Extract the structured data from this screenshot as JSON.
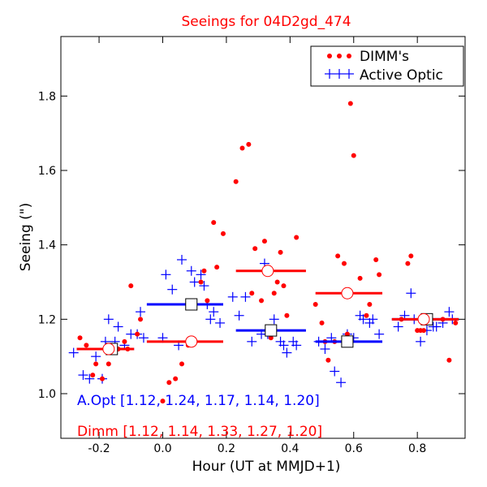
{
  "chart_data": {
    "type": "scatter",
    "title": "Seeings for 04D2gd_474",
    "xlabel": "Hour (UT at MMJD+1)",
    "ylabel": "Seeing (\")",
    "xlim": [
      -0.32,
      0.95
    ],
    "ylim": [
      0.88,
      1.96
    ],
    "xticks": [
      -0.2,
      0.0,
      0.2,
      0.4,
      0.6,
      0.8
    ],
    "xtick_labels": [
      "-0.2",
      "0.0",
      "0.2",
      "0.4",
      "0.6",
      "0.8"
    ],
    "yticks": [
      1.0,
      1.2,
      1.4,
      1.6,
      1.8
    ],
    "ytick_labels": [
      "1.0",
      "1.2",
      "1.4",
      "1.6",
      "1.8"
    ],
    "grid": false,
    "legend_position": "top-right",
    "colors": {
      "dimm": "#ff0000",
      "active_optic": "#0000ff",
      "title": "#ff0000"
    },
    "series": [
      {
        "name": "DIMM's",
        "marker": "dot",
        "points": [
          [
            -0.26,
            1.15
          ],
          [
            -0.24,
            1.13
          ],
          [
            -0.22,
            1.05
          ],
          [
            -0.21,
            1.08
          ],
          [
            -0.19,
            1.04
          ],
          [
            -0.17,
            1.08
          ],
          [
            -0.16,
            1.12
          ],
          [
            -0.14,
            1.12
          ],
          [
            -0.12,
            1.14
          ],
          [
            -0.11,
            1.12
          ],
          [
            -0.1,
            1.29
          ],
          [
            -0.08,
            1.16
          ],
          [
            -0.07,
            1.2
          ],
          [
            0.0,
            0.98
          ],
          [
            0.02,
            1.03
          ],
          [
            0.04,
            1.04
          ],
          [
            0.06,
            1.08
          ],
          [
            0.08,
            1.13
          ],
          [
            0.1,
            1.24
          ],
          [
            0.12,
            1.3
          ],
          [
            0.13,
            1.33
          ],
          [
            0.14,
            1.25
          ],
          [
            0.16,
            1.46
          ],
          [
            0.17,
            1.34
          ],
          [
            0.19,
            1.43
          ],
          [
            0.23,
            1.57
          ],
          [
            0.25,
            1.66
          ],
          [
            0.27,
            1.67
          ],
          [
            0.28,
            1.27
          ],
          [
            0.29,
            1.39
          ],
          [
            0.31,
            1.25
          ],
          [
            0.32,
            1.41
          ],
          [
            0.33,
            1.33
          ],
          [
            0.34,
            1.15
          ],
          [
            0.35,
            1.27
          ],
          [
            0.36,
            1.3
          ],
          [
            0.37,
            1.38
          ],
          [
            0.38,
            1.29
          ],
          [
            0.39,
            1.21
          ],
          [
            0.42,
            1.42
          ],
          [
            0.48,
            1.24
          ],
          [
            0.5,
            1.19
          ],
          [
            0.51,
            1.14
          ],
          [
            0.52,
            1.09
          ],
          [
            0.54,
            1.14
          ],
          [
            0.55,
            1.37
          ],
          [
            0.57,
            1.35
          ],
          [
            0.58,
            1.16
          ],
          [
            0.59,
            1.78
          ],
          [
            0.6,
            1.64
          ],
          [
            0.62,
            1.31
          ],
          [
            0.64,
            1.21
          ],
          [
            0.65,
            1.24
          ],
          [
            0.67,
            1.36
          ],
          [
            0.68,
            1.32
          ],
          [
            0.75,
            1.2
          ],
          [
            0.77,
            1.35
          ],
          [
            0.78,
            1.37
          ],
          [
            0.8,
            1.17
          ],
          [
            0.81,
            1.17
          ],
          [
            0.82,
            1.17
          ],
          [
            0.84,
            1.2
          ],
          [
            0.88,
            1.2
          ],
          [
            0.9,
            1.09
          ],
          [
            0.92,
            1.19
          ]
        ]
      },
      {
        "name": "Active Optic",
        "marker": "plus",
        "points": [
          [
            -0.28,
            1.11
          ],
          [
            -0.25,
            1.05
          ],
          [
            -0.23,
            1.04
          ],
          [
            -0.21,
            1.1
          ],
          [
            -0.19,
            1.04
          ],
          [
            -0.18,
            1.14
          ],
          [
            -0.17,
            1.2
          ],
          [
            -0.15,
            1.14
          ],
          [
            -0.14,
            1.18
          ],
          [
            -0.12,
            1.13
          ],
          [
            -0.1,
            1.16
          ],
          [
            -0.08,
            1.16
          ],
          [
            -0.07,
            1.22
          ],
          [
            -0.06,
            1.15
          ],
          [
            0.0,
            1.15
          ],
          [
            0.01,
            1.32
          ],
          [
            0.03,
            1.28
          ],
          [
            0.05,
            1.13
          ],
          [
            0.06,
            1.36
          ],
          [
            0.08,
            1.14
          ],
          [
            0.09,
            1.33
          ],
          [
            0.1,
            1.3
          ],
          [
            0.12,
            1.32
          ],
          [
            0.13,
            1.29
          ],
          [
            0.14,
            1.24
          ],
          [
            0.15,
            1.2
          ],
          [
            0.16,
            1.22
          ],
          [
            0.18,
            1.19
          ],
          [
            0.22,
            1.26
          ],
          [
            0.24,
            1.21
          ],
          [
            0.26,
            1.26
          ],
          [
            0.28,
            1.14
          ],
          [
            0.31,
            1.16
          ],
          [
            0.32,
            1.35
          ],
          [
            0.33,
            1.16
          ],
          [
            0.35,
            1.2
          ],
          [
            0.37,
            1.14
          ],
          [
            0.38,
            1.13
          ],
          [
            0.39,
            1.11
          ],
          [
            0.41,
            1.14
          ],
          [
            0.42,
            1.13
          ],
          [
            0.49,
            1.14
          ],
          [
            0.51,
            1.12
          ],
          [
            0.53,
            1.15
          ],
          [
            0.54,
            1.06
          ],
          [
            0.56,
            1.03
          ],
          [
            0.58,
            1.16
          ],
          [
            0.6,
            1.15
          ],
          [
            0.62,
            1.21
          ],
          [
            0.63,
            1.2
          ],
          [
            0.65,
            1.19
          ],
          [
            0.66,
            1.2
          ],
          [
            0.68,
            1.16
          ],
          [
            0.74,
            1.18
          ],
          [
            0.76,
            1.21
          ],
          [
            0.78,
            1.27
          ],
          [
            0.79,
            1.2
          ],
          [
            0.81,
            1.14
          ],
          [
            0.83,
            1.17
          ],
          [
            0.85,
            1.18
          ],
          [
            0.86,
            1.18
          ],
          [
            0.88,
            1.19
          ],
          [
            0.9,
            1.22
          ],
          [
            0.91,
            1.2
          ]
        ]
      }
    ],
    "bins": [
      {
        "x_start": -0.27,
        "x_end": -0.09,
        "x_center": -0.16,
        "aopt_median": 1.12,
        "dimm_median": 1.12,
        "aopt_marker_x": -0.16,
        "dimm_marker_x": -0.17
      },
      {
        "x_start": -0.05,
        "x_end": 0.19,
        "x_center": 0.09,
        "aopt_median": 1.24,
        "dimm_median": 1.14,
        "aopt_marker_x": 0.09,
        "dimm_marker_x": 0.09
      },
      {
        "x_start": 0.23,
        "x_end": 0.45,
        "x_center": 0.33,
        "aopt_median": 1.17,
        "dimm_median": 1.33,
        "aopt_marker_x": 0.34,
        "dimm_marker_x": 0.33
      },
      {
        "x_start": 0.48,
        "x_end": 0.69,
        "x_center": 0.58,
        "aopt_median": 1.14,
        "dimm_median": 1.27,
        "aopt_marker_x": 0.58,
        "dimm_marker_x": 0.58
      },
      {
        "x_start": 0.72,
        "x_end": 0.93,
        "x_center": 0.83,
        "aopt_median": 1.2,
        "dimm_median": 1.2,
        "aopt_marker_x": 0.83,
        "dimm_marker_x": 0.82
      }
    ],
    "annotations": {
      "aopt": "A.Opt [1.12, 1.24, 1.17, 1.14, 1.20]",
      "dimm": "Dimm [1.12, 1.14, 1.33, 1.27, 1.20]"
    }
  }
}
